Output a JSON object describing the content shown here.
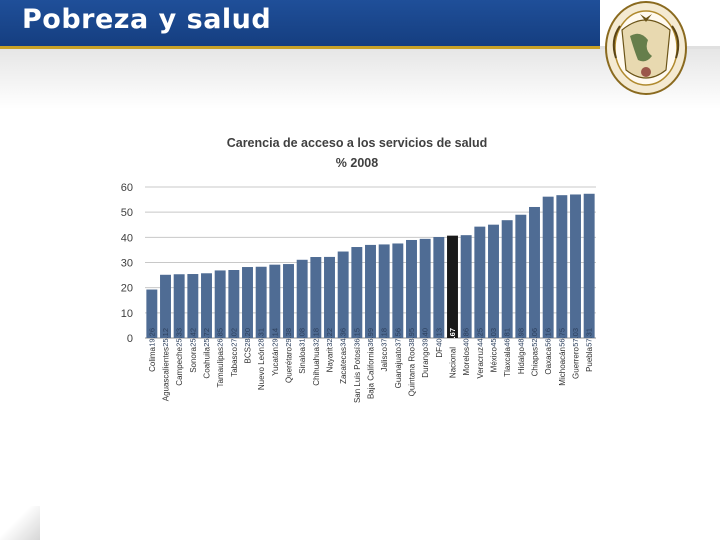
{
  "header": {
    "title": "Pobreza y salud",
    "seal_text": "UNIVERSIDAD NACIONAL AUTONOMA DE MEXICO",
    "seal_motto": "POR MI RAZA HABLARA EL ESPIRITU"
  },
  "colors": {
    "title_bar": "#1f4f99",
    "gold_accent": "#c9a227",
    "bar": "#4f6c94",
    "highlight_bar": "#1a1a1a"
  },
  "chart_data": {
    "type": "bar",
    "title": "Carencia de acceso a los servicios de salud",
    "subtitle": "% 2008",
    "ylim": [
      0,
      60
    ],
    "yticks": [
      0,
      10,
      20,
      30,
      40,
      50,
      60
    ],
    "grid": true,
    "categories": [
      "Colima",
      "Aguascalientes",
      "Campeche",
      "Sonora",
      "Coahuila",
      "Tamaulipas",
      "Tabasco",
      "BCS",
      "Nuevo León",
      "Yucatán",
      "Querétaro",
      "Sinaloa",
      "Chihuahua",
      "Nayarit",
      "Zacatecas",
      "San Luis Potosí",
      "Baja California",
      "Jalisco",
      "Guanajuato",
      "Quintana Roo",
      "Durango",
      "DF",
      "Nacional",
      "Morelos",
      "Veracruz",
      "México",
      "Tlaxcala",
      "Hidalgo",
      "Chiapas",
      "Oaxaca",
      "Michoacán",
      "Guerrero",
      "Puebla"
    ],
    "values": [
      19.26,
      25.12,
      25.33,
      25.42,
      25.72,
      26.85,
      27.02,
      28.2,
      28.31,
      29.14,
      29.38,
      31.08,
      32.18,
      32.22,
      34.36,
      36.15,
      36.99,
      37.18,
      37.56,
      38.95,
      39.4,
      40.13,
      40.67,
      40.86,
      44.25,
      45.03,
      46.81,
      48.98,
      52.06,
      56.16,
      56.75,
      57.03,
      57.31
    ],
    "highlight_category": "Nacional",
    "value_labels": [
      "19.26",
      "25.12",
      "25.33",
      "25.42",
      "25.72",
      "26.85",
      "27.02",
      "28.20",
      "28.31",
      "29.14",
      "29.38",
      "31.08",
      "32.18",
      "32.22",
      "34.36",
      "36.15",
      "36.99",
      "37.18",
      "37.56",
      "38.95",
      "39.40",
      "40.13",
      "40.67",
      "40.86",
      "44.25",
      "45.03",
      "46.81",
      "48.98",
      "52.06",
      "56.16",
      "56.75",
      "57.03",
      "57.31"
    ]
  }
}
